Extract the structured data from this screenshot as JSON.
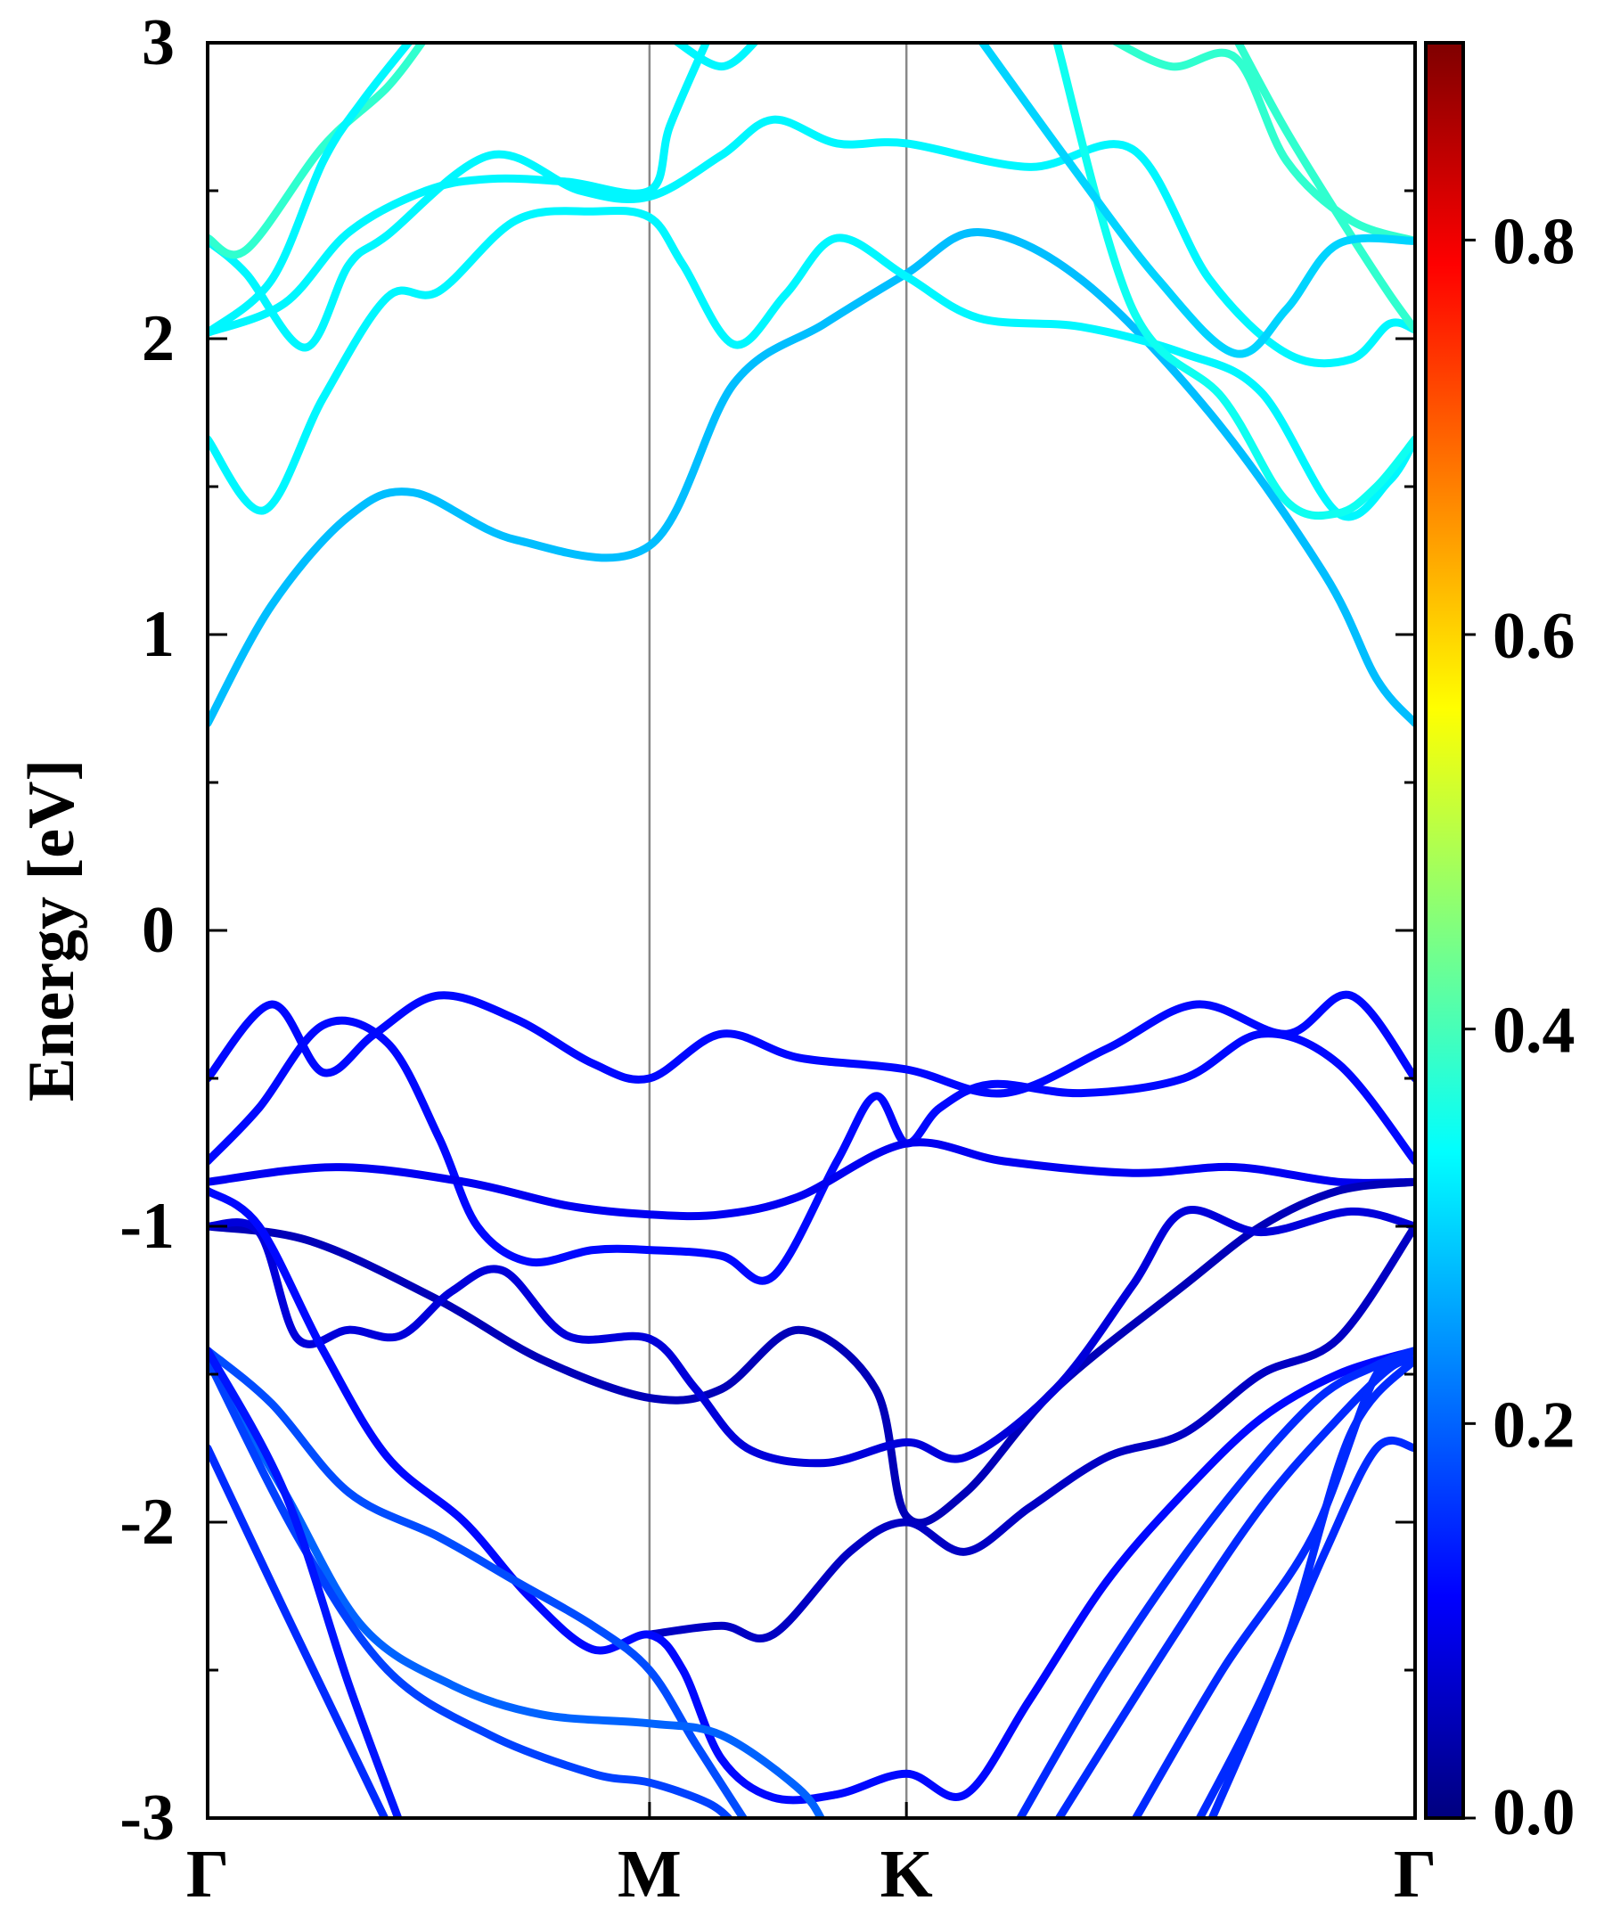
{
  "chart_data": {
    "type": "line",
    "title": "",
    "xlabel": "",
    "ylabel": "Energy [eV]",
    "ylim": [
      -3,
      3
    ],
    "x_range": [
      0,
      4.7
    ],
    "y_ticks": [
      -3,
      -2,
      -1,
      0,
      1,
      2,
      3
    ],
    "y_tick_labels": [
      "-3",
      "-2",
      "-1",
      "0",
      "1",
      "2",
      "3"
    ],
    "k_points": [
      {
        "label": "Γ",
        "x": 0
      },
      {
        "label": "M",
        "x": 1.72
      },
      {
        "label": "K",
        "x": 2.72
      },
      {
        "label": "Γ",
        "x": 4.7
      }
    ],
    "colorbar": {
      "range": [
        0,
        0.9
      ],
      "ticks": [
        0.0,
        0.2,
        0.4,
        0.6,
        0.8
      ],
      "tick_labels": [
        "0.0",
        "0.2",
        "0.4",
        "0.6",
        "0.8"
      ],
      "colormap": "jet"
    },
    "grid": false,
    "legend": "none",
    "series": [
      {
        "weight": 0.28,
        "points": [
          [
            0,
            0.7
          ],
          [
            0.25,
            1.1
          ],
          [
            0.55,
            1.4
          ],
          [
            0.8,
            1.48
          ],
          [
            1.2,
            1.32
          ],
          [
            1.72,
            1.3
          ],
          [
            2.05,
            1.85
          ],
          [
            2.4,
            2.05
          ],
          [
            2.72,
            2.22
          ],
          [
            3.0,
            2.36
          ],
          [
            3.4,
            2.2
          ],
          [
            3.9,
            1.75
          ],
          [
            4.35,
            1.2
          ],
          [
            4.55,
            0.85
          ],
          [
            4.7,
            0.7
          ]
        ]
      },
      {
        "weight": 0.33,
        "points": [
          [
            0,
            1.66
          ],
          [
            0.22,
            1.42
          ],
          [
            0.45,
            1.8
          ],
          [
            0.7,
            2.14
          ],
          [
            0.9,
            2.16
          ],
          [
            1.2,
            2.4
          ],
          [
            1.5,
            2.43
          ],
          [
            1.72,
            2.41
          ],
          [
            1.85,
            2.25
          ],
          [
            2.05,
            1.98
          ],
          [
            2.25,
            2.15
          ],
          [
            2.45,
            2.34
          ],
          [
            2.72,
            2.21
          ],
          [
            3.0,
            2.07
          ],
          [
            3.4,
            2.04
          ],
          [
            3.8,
            1.95
          ],
          [
            4.1,
            1.82
          ],
          [
            4.4,
            1.41
          ],
          [
            4.6,
            1.52
          ],
          [
            4.7,
            1.66
          ]
        ]
      },
      {
        "weight": 0.33,
        "points": [
          [
            0,
            2.02
          ],
          [
            0.3,
            2.12
          ],
          [
            0.55,
            2.36
          ],
          [
            0.85,
            2.5
          ],
          [
            1.1,
            2.54
          ],
          [
            1.4,
            2.53
          ],
          [
            1.72,
            2.5
          ],
          [
            1.8,
            2.72
          ],
          [
            1.95,
            3.02
          ]
        ]
      },
      {
        "weight": 0.33,
        "points": [
          [
            0,
            2.33
          ],
          [
            0.15,
            2.22
          ],
          [
            0.38,
            1.97
          ],
          [
            0.55,
            2.25
          ],
          [
            0.7,
            2.35
          ],
          [
            1.1,
            2.62
          ],
          [
            1.45,
            2.5
          ],
          [
            1.72,
            2.48
          ],
          [
            2.0,
            2.62
          ],
          [
            2.2,
            2.74
          ],
          [
            2.45,
            2.66
          ],
          [
            2.72,
            2.66
          ],
          [
            3.2,
            2.58
          ],
          [
            3.6,
            2.64
          ],
          [
            3.9,
            2.2
          ],
          [
            4.2,
            1.95
          ],
          [
            4.45,
            1.93
          ],
          [
            4.6,
            2.05
          ],
          [
            4.7,
            2.03
          ]
        ]
      },
      {
        "weight": 0.38,
        "points": [
          [
            0,
            2.34
          ],
          [
            0.15,
            2.3
          ],
          [
            0.45,
            2.65
          ],
          [
            0.7,
            2.85
          ],
          [
            0.85,
            3.02
          ]
        ]
      },
      {
        "weight": 0.33,
        "points": [
          [
            0,
            2.02
          ],
          [
            0.25,
            2.2
          ],
          [
            0.45,
            2.6
          ],
          [
            0.6,
            2.8
          ],
          [
            0.8,
            3.02
          ]
        ]
      },
      {
        "weight": 0.33,
        "points": [
          [
            1.8,
            3.02
          ],
          [
            2.0,
            2.92
          ],
          [
            2.15,
            3.02
          ]
        ]
      },
      {
        "weight": 0.35,
        "points": [
          [
            3.3,
            3.02
          ],
          [
            3.6,
            2.1
          ],
          [
            3.95,
            1.8
          ],
          [
            4.2,
            1.45
          ],
          [
            4.4,
            1.41
          ],
          [
            4.55,
            1.5
          ],
          [
            4.7,
            1.66
          ]
        ]
      },
      {
        "weight": 0.38,
        "points": [
          [
            3.5,
            3.02
          ],
          [
            3.75,
            2.92
          ],
          [
            4.0,
            2.95
          ],
          [
            4.2,
            2.6
          ],
          [
            4.45,
            2.4
          ],
          [
            4.7,
            2.33
          ]
        ]
      },
      {
        "weight": 0.38,
        "points": [
          [
            4.0,
            3.02
          ],
          [
            4.2,
            2.7
          ],
          [
            4.45,
            2.35
          ],
          [
            4.6,
            2.15
          ],
          [
            4.7,
            2.03
          ]
        ]
      },
      {
        "weight": 0.3,
        "points": [
          [
            3.0,
            3.02
          ],
          [
            3.35,
            2.6
          ],
          [
            3.7,
            2.2
          ],
          [
            4.0,
            1.95
          ],
          [
            4.2,
            2.1
          ],
          [
            4.4,
            2.32
          ],
          [
            4.7,
            2.33
          ]
        ]
      },
      {
        "weight": 0.12,
        "points": [
          [
            0,
            -0.5
          ],
          [
            0.25,
            -0.25
          ],
          [
            0.45,
            -0.48
          ],
          [
            0.65,
            -0.35
          ],
          [
            0.9,
            -0.22
          ],
          [
            1.2,
            -0.3
          ],
          [
            1.5,
            -0.45
          ],
          [
            1.72,
            -0.5
          ],
          [
            2.0,
            -0.35
          ],
          [
            2.3,
            -0.43
          ],
          [
            2.72,
            -0.47
          ],
          [
            3.1,
            -0.55
          ],
          [
            3.5,
            -0.4
          ],
          [
            3.85,
            -0.25
          ],
          [
            4.2,
            -0.35
          ],
          [
            4.45,
            -0.22
          ],
          [
            4.7,
            -0.5
          ]
        ]
      },
      {
        "weight": 0.12,
        "points": [
          [
            0,
            -0.78
          ],
          [
            0.2,
            -0.6
          ],
          [
            0.45,
            -0.32
          ],
          [
            0.7,
            -0.38
          ],
          [
            0.9,
            -0.7
          ],
          [
            1.05,
            -1.0
          ],
          [
            1.25,
            -1.12
          ],
          [
            1.5,
            -1.08
          ],
          [
            1.72,
            -1.08
          ],
          [
            2.0,
            -1.1
          ],
          [
            2.2,
            -1.17
          ],
          [
            2.45,
            -0.78
          ],
          [
            2.6,
            -0.56
          ],
          [
            2.72,
            -0.72
          ],
          [
            2.85,
            -0.6
          ],
          [
            3.05,
            -0.52
          ],
          [
            3.4,
            -0.55
          ],
          [
            3.8,
            -0.5
          ],
          [
            4.1,
            -0.35
          ],
          [
            4.4,
            -0.45
          ],
          [
            4.7,
            -0.78
          ]
        ]
      },
      {
        "weight": 0.1,
        "points": [
          [
            0,
            -0.85
          ],
          [
            0.5,
            -0.8
          ],
          [
            1.0,
            -0.85
          ],
          [
            1.4,
            -0.93
          ],
          [
            1.72,
            -0.96
          ],
          [
            2.0,
            -0.96
          ],
          [
            2.3,
            -0.9
          ],
          [
            2.72,
            -0.72
          ],
          [
            3.1,
            -0.78
          ],
          [
            3.6,
            -0.82
          ],
          [
            4.0,
            -0.8
          ],
          [
            4.4,
            -0.85
          ],
          [
            4.7,
            -0.85
          ]
        ]
      },
      {
        "weight": 0.05,
        "points": [
          [
            0,
            -1.0
          ],
          [
            0.4,
            -1.05
          ],
          [
            0.9,
            -1.25
          ],
          [
            1.3,
            -1.45
          ],
          [
            1.72,
            -1.58
          ],
          [
            2.0,
            -1.55
          ],
          [
            2.3,
            -1.35
          ],
          [
            2.6,
            -1.55
          ],
          [
            2.72,
            -1.98
          ],
          [
            2.95,
            -1.9
          ],
          [
            3.3,
            -1.55
          ],
          [
            3.8,
            -1.2
          ],
          [
            4.1,
            -1.0
          ],
          [
            4.4,
            -0.88
          ],
          [
            4.7,
            -0.85
          ]
        ]
      },
      {
        "weight": 0.08,
        "points": [
          [
            0,
            -1.0
          ],
          [
            0.2,
            -1.02
          ],
          [
            0.35,
            -1.38
          ],
          [
            0.55,
            -1.35
          ],
          [
            0.75,
            -1.37
          ],
          [
            0.95,
            -1.22
          ],
          [
            1.15,
            -1.15
          ],
          [
            1.4,
            -1.37
          ],
          [
            1.72,
            -1.38
          ],
          [
            1.9,
            -1.55
          ],
          [
            2.1,
            -1.75
          ],
          [
            2.4,
            -1.8
          ],
          [
            2.72,
            -1.73
          ],
          [
            2.95,
            -1.78
          ],
          [
            3.3,
            -1.55
          ],
          [
            3.6,
            -1.2
          ],
          [
            3.8,
            -0.95
          ],
          [
            4.1,
            -1.02
          ],
          [
            4.45,
            -0.95
          ],
          [
            4.7,
            -1.0
          ]
        ]
      },
      {
        "weight": 0.06,
        "points": [
          [
            1.72,
            -2.38
          ],
          [
            2.0,
            -2.35
          ],
          [
            2.2,
            -2.38
          ],
          [
            2.5,
            -2.1
          ],
          [
            2.72,
            -2.0
          ],
          [
            2.95,
            -2.1
          ],
          [
            3.2,
            -1.95
          ],
          [
            3.5,
            -1.78
          ],
          [
            3.8,
            -1.7
          ],
          [
            4.1,
            -1.5
          ],
          [
            4.4,
            -1.38
          ],
          [
            4.7,
            -1.0
          ]
        ]
      },
      {
        "weight": 0.12,
        "points": [
          [
            0,
            -0.88
          ],
          [
            0.2,
            -1.0
          ],
          [
            0.45,
            -1.42
          ],
          [
            0.7,
            -1.78
          ],
          [
            1.0,
            -2.0
          ],
          [
            1.25,
            -2.25
          ],
          [
            1.5,
            -2.43
          ],
          [
            1.72,
            -2.38
          ],
          [
            1.85,
            -2.5
          ],
          [
            2.0,
            -2.8
          ],
          [
            2.2,
            -2.93
          ],
          [
            2.45,
            -2.92
          ],
          [
            2.72,
            -2.85
          ],
          [
            2.95,
            -2.92
          ],
          [
            3.2,
            -2.6
          ],
          [
            3.5,
            -2.2
          ],
          [
            3.8,
            -1.9
          ],
          [
            4.1,
            -1.65
          ],
          [
            4.4,
            -1.5
          ],
          [
            4.7,
            -1.42
          ]
        ]
      },
      {
        "weight": 0.18,
        "points": [
          [
            0,
            -1.42
          ],
          [
            0.25,
            -1.6
          ],
          [
            0.55,
            -1.9
          ],
          [
            0.9,
            -2.05
          ],
          [
            1.2,
            -2.2
          ],
          [
            1.5,
            -2.35
          ],
          [
            1.72,
            -2.5
          ],
          [
            1.9,
            -2.75
          ],
          [
            2.1,
            -3.02
          ]
        ]
      },
      {
        "weight": 0.2,
        "points": [
          [
            0,
            -1.45
          ],
          [
            0.3,
            -1.9
          ],
          [
            0.6,
            -2.35
          ],
          [
            0.95,
            -2.55
          ],
          [
            1.3,
            -2.65
          ],
          [
            1.72,
            -2.68
          ],
          [
            2.0,
            -2.72
          ],
          [
            2.3,
            -2.9
          ],
          [
            2.4,
            -3.02
          ]
        ]
      },
      {
        "weight": 0.17,
        "points": [
          [
            0,
            -1.45
          ],
          [
            0.35,
            -2.05
          ],
          [
            0.7,
            -2.5
          ],
          [
            1.1,
            -2.72
          ],
          [
            1.5,
            -2.85
          ],
          [
            1.72,
            -2.88
          ],
          [
            1.95,
            -2.95
          ],
          [
            2.05,
            -3.02
          ]
        ]
      },
      {
        "weight": 0.15,
        "points": [
          [
            0,
            -1.75
          ],
          [
            0.3,
            -2.3
          ],
          [
            0.55,
            -2.75
          ],
          [
            0.7,
            -3.02
          ]
        ]
      },
      {
        "weight": 0.13,
        "points": [
          [
            0,
            -1.42
          ],
          [
            0.3,
            -1.9
          ],
          [
            0.55,
            -2.55
          ],
          [
            0.75,
            -3.02
          ]
        ]
      },
      {
        "weight": 0.15,
        "points": [
          [
            3.15,
            -3.02
          ],
          [
            3.5,
            -2.5
          ],
          [
            3.9,
            -2.0
          ],
          [
            4.3,
            -1.6
          ],
          [
            4.55,
            -1.47
          ],
          [
            4.7,
            -1.42
          ]
        ]
      },
      {
        "weight": 0.15,
        "points": [
          [
            3.3,
            -3.02
          ],
          [
            3.75,
            -2.4
          ],
          [
            4.1,
            -1.95
          ],
          [
            4.4,
            -1.65
          ],
          [
            4.6,
            -1.48
          ],
          [
            4.7,
            -1.45
          ]
        ]
      },
      {
        "weight": 0.15,
        "points": [
          [
            3.6,
            -3.02
          ],
          [
            3.95,
            -2.5
          ],
          [
            4.3,
            -2.05
          ],
          [
            4.55,
            -1.5
          ],
          [
            4.7,
            -1.45
          ]
        ]
      },
      {
        "weight": 0.15,
        "points": [
          [
            3.85,
            -3.02
          ],
          [
            4.1,
            -2.6
          ],
          [
            4.35,
            -2.1
          ],
          [
            4.55,
            -1.75
          ],
          [
            4.7,
            -1.75
          ]
        ]
      },
      {
        "weight": 0.15,
        "points": [
          [
            3.9,
            -3.02
          ],
          [
            4.2,
            -2.4
          ],
          [
            4.45,
            -1.7
          ],
          [
            4.7,
            -1.45
          ]
        ]
      }
    ]
  }
}
